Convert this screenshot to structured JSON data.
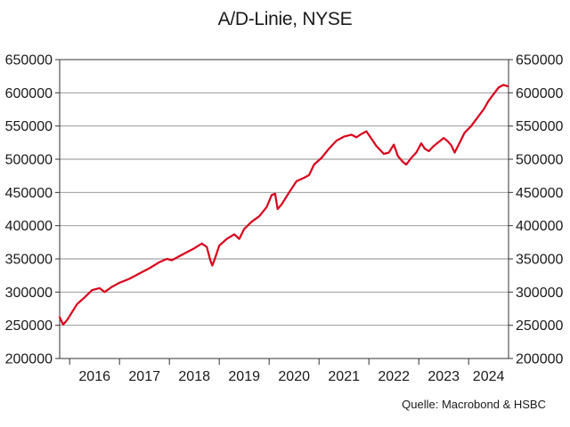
{
  "chart_data": {
    "type": "line",
    "title": "A/D-Linie, NYSE",
    "source": "Quelle: Macrobond & HSBC",
    "xlabel": "",
    "ylabel": "",
    "xlim": [
      2015.8,
      2024.8
    ],
    "ylim": [
      200000,
      650000
    ],
    "y_ticks": [
      200000,
      250000,
      300000,
      350000,
      400000,
      450000,
      500000,
      550000,
      600000,
      650000
    ],
    "y_tick_labels": [
      "200000",
      "250000",
      "300000",
      "350000",
      "400000",
      "450000",
      "500000",
      "550000",
      "600000",
      "650000"
    ],
    "x_tick_labels": [
      "2016",
      "2017",
      "2018",
      "2019",
      "2020",
      "2021",
      "2022",
      "2023",
      "2024"
    ],
    "x_year_boundaries": [
      2016,
      2017,
      2018,
      2019,
      2020,
      2021,
      2022,
      2023,
      2024
    ],
    "grid": true,
    "y_axis_both_sides": true,
    "legend": false,
    "series": [
      {
        "color": "#d9001b",
        "points": [
          [
            2015.8,
            262000
          ],
          [
            2015.87,
            251000
          ],
          [
            2015.95,
            258000
          ],
          [
            2016.05,
            270000
          ],
          [
            2016.15,
            282000
          ],
          [
            2016.3,
            292000
          ],
          [
            2016.45,
            303000
          ],
          [
            2016.6,
            306000
          ],
          [
            2016.7,
            300000
          ],
          [
            2016.85,
            308000
          ],
          [
            2017.0,
            314000
          ],
          [
            2017.2,
            320000
          ],
          [
            2017.4,
            328000
          ],
          [
            2017.6,
            336000
          ],
          [
            2017.8,
            345000
          ],
          [
            2017.95,
            350000
          ],
          [
            2018.05,
            348000
          ],
          [
            2018.15,
            352000
          ],
          [
            2018.3,
            358000
          ],
          [
            2018.5,
            366000
          ],
          [
            2018.65,
            373000
          ],
          [
            2018.75,
            368000
          ],
          [
            2018.82,
            348000
          ],
          [
            2018.86,
            340000
          ],
          [
            2018.92,
            352000
          ],
          [
            2019.0,
            370000
          ],
          [
            2019.15,
            380000
          ],
          [
            2019.3,
            387000
          ],
          [
            2019.4,
            380000
          ],
          [
            2019.5,
            395000
          ],
          [
            2019.65,
            406000
          ],
          [
            2019.8,
            414000
          ],
          [
            2019.95,
            428000
          ],
          [
            2020.05,
            446000
          ],
          [
            2020.12,
            448000
          ],
          [
            2020.17,
            425000
          ],
          [
            2020.25,
            432000
          ],
          [
            2020.4,
            450000
          ],
          [
            2020.55,
            467000
          ],
          [
            2020.7,
            472000
          ],
          [
            2020.8,
            476000
          ],
          [
            2020.9,
            492000
          ],
          [
            2021.05,
            502000
          ],
          [
            2021.2,
            516000
          ],
          [
            2021.35,
            528000
          ],
          [
            2021.5,
            534000
          ],
          [
            2021.65,
            537000
          ],
          [
            2021.75,
            533000
          ],
          [
            2021.85,
            538000
          ],
          [
            2021.95,
            542000
          ],
          [
            2022.05,
            531000
          ],
          [
            2022.15,
            520000
          ],
          [
            2022.3,
            508000
          ],
          [
            2022.4,
            510000
          ],
          [
            2022.5,
            522000
          ],
          [
            2022.58,
            505000
          ],
          [
            2022.68,
            496000
          ],
          [
            2022.75,
            492000
          ],
          [
            2022.85,
            502000
          ],
          [
            2022.95,
            510000
          ],
          [
            2023.05,
            524000
          ],
          [
            2023.12,
            516000
          ],
          [
            2023.2,
            512000
          ],
          [
            2023.3,
            520000
          ],
          [
            2023.4,
            526000
          ],
          [
            2023.5,
            532000
          ],
          [
            2023.58,
            527000
          ],
          [
            2023.65,
            521000
          ],
          [
            2023.72,
            510000
          ],
          [
            2023.8,
            522000
          ],
          [
            2023.92,
            540000
          ],
          [
            2024.05,
            550000
          ],
          [
            2024.15,
            560000
          ],
          [
            2024.3,
            575000
          ],
          [
            2024.4,
            588000
          ],
          [
            2024.5,
            598000
          ],
          [
            2024.6,
            608000
          ],
          [
            2024.7,
            612000
          ],
          [
            2024.78,
            610000
          ]
        ]
      }
    ]
  }
}
